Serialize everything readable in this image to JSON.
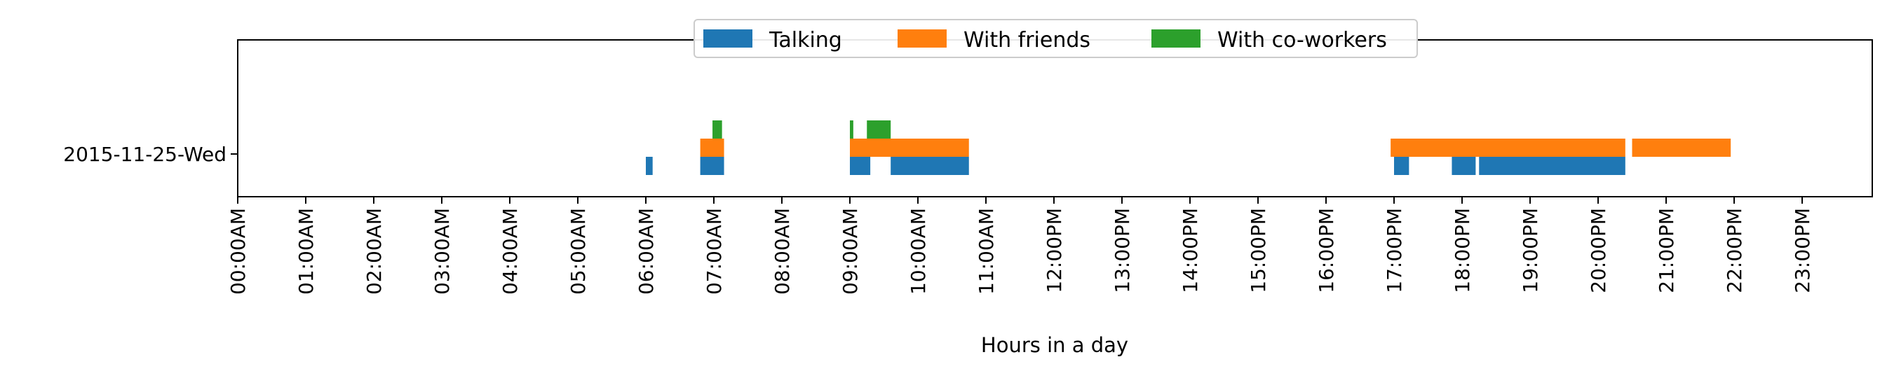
{
  "chart_data": {
    "type": "bar",
    "orientation": "horizontal-timeline",
    "title": "",
    "xlabel": "Hours in a day",
    "ylabel": "",
    "xlim": [
      0,
      24
    ],
    "x_unit": "hours",
    "xticks": [
      0,
      1,
      2,
      3,
      4,
      5,
      6,
      7,
      8,
      9,
      10,
      11,
      12,
      13,
      14,
      15,
      16,
      17,
      18,
      19,
      20,
      21,
      22,
      23
    ],
    "xtick_labels": [
      "00:00AM",
      "01:00AM",
      "02:00AM",
      "03:00AM",
      "04:00AM",
      "05:00AM",
      "06:00AM",
      "07:00AM",
      "08:00AM",
      "09:00AM",
      "10:00AM",
      "11:00AM",
      "12:00PM",
      "13:00PM",
      "14:00PM",
      "15:00PM",
      "16:00PM",
      "17:00PM",
      "18:00PM",
      "19:00PM",
      "20:00PM",
      "21:00PM",
      "22:00PM",
      "23:00PM"
    ],
    "yticks": [
      "2015-11-25-Wed"
    ],
    "grid": false,
    "legend_position": "top-center",
    "series": [
      {
        "name": "Talking",
        "color": "#1f77b4",
        "intervals": [
          [
            6.0,
            6.1
          ],
          [
            6.8,
            7.15
          ],
          [
            9.0,
            9.3
          ],
          [
            9.6,
            10.75
          ],
          [
            17.0,
            17.22
          ],
          [
            17.85,
            18.2
          ],
          [
            18.25,
            20.4
          ]
        ]
      },
      {
        "name": "With friends",
        "color": "#ff7f0e",
        "intervals": [
          [
            6.8,
            7.15
          ],
          [
            9.0,
            10.75
          ],
          [
            16.95,
            20.4
          ],
          [
            20.5,
            21.95
          ]
        ]
      },
      {
        "name": "With co-workers",
        "color": "#2ca02c",
        "intervals": [
          [
            6.98,
            7.12
          ],
          [
            9.0,
            9.05
          ],
          [
            9.25,
            9.6
          ]
        ]
      }
    ]
  }
}
